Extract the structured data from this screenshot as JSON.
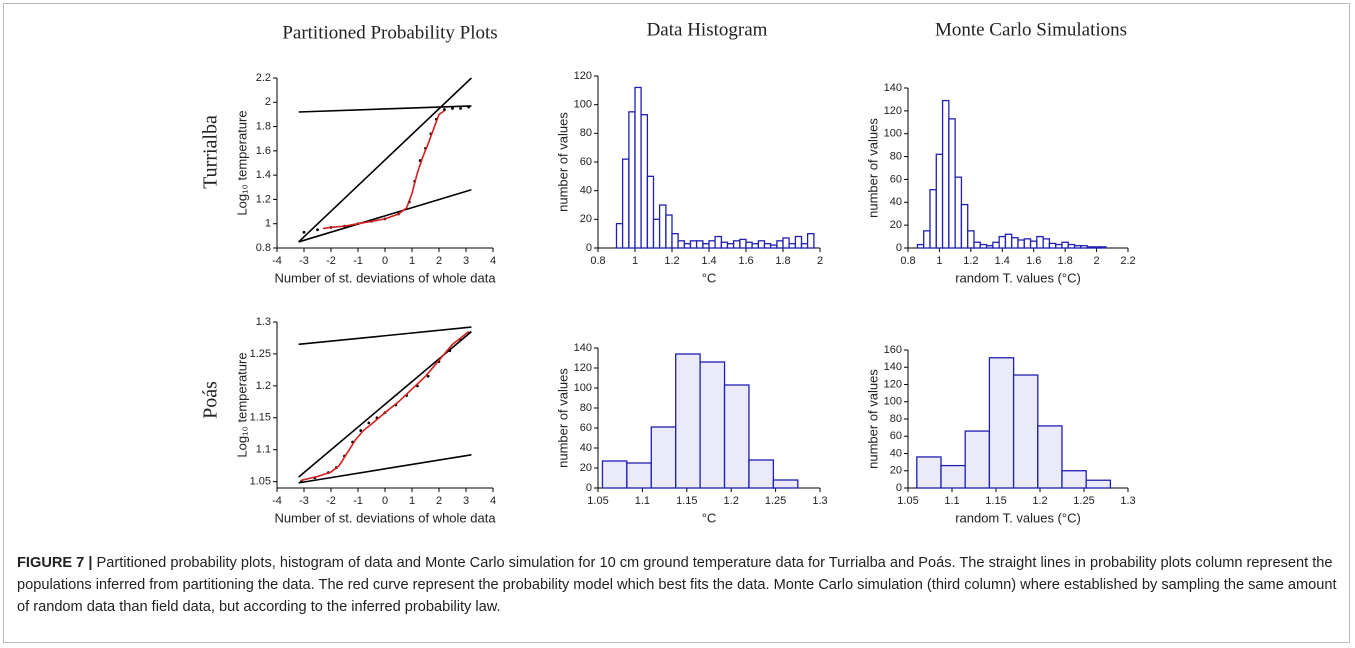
{
  "column_titles": [
    "Partitioned Probability Plots",
    "Data Histogram",
    "Monte Carlo Simulations"
  ],
  "row_labels": [
    "Turrialba",
    "Poás"
  ],
  "chart_data": [
    {
      "type": "line",
      "xlabel": "Number of st. deviations of whole data",
      "ylabel": "Log₁₀ temperature",
      "xlim": [
        -4,
        4
      ],
      "xticks": [
        -4,
        -3,
        -2,
        -1,
        0,
        1,
        2,
        3,
        4
      ],
      "ylim": [
        0.8,
        2.2
      ],
      "yticks": [
        0.8,
        1,
        1.2,
        1.4,
        1.6,
        1.8,
        2,
        2.2
      ],
      "series": [
        {
          "color": "#000000",
          "x": [
            -3.2,
            3.2
          ],
          "values": [
            1.92,
            1.97
          ]
        },
        {
          "color": "#000000",
          "x": [
            -3.2,
            3.2
          ],
          "values": [
            0.85,
            2.2
          ]
        },
        {
          "color": "#000000",
          "x": [
            -3.2,
            3.2
          ],
          "values": [
            0.85,
            1.28
          ]
        },
        {
          "color": "#000000",
          "mode": "markers",
          "x": [
            -3,
            -2.5,
            -2,
            -1.5,
            -1,
            -0.5,
            0,
            0.5,
            0.9,
            1.1,
            1.3,
            1.5,
            1.7,
            1.9,
            2.2,
            2.5,
            2.8,
            3.1
          ],
          "values": [
            0.93,
            0.95,
            0.97,
            0.98,
            1.0,
            1.02,
            1.04,
            1.08,
            1.18,
            1.35,
            1.52,
            1.62,
            1.74,
            1.86,
            1.94,
            1.95,
            1.95,
            1.96
          ]
        },
        {
          "color": "#d21f1f",
          "x": [
            -2.3,
            -2,
            -1.5,
            -1,
            -0.5,
            0,
            0.5,
            0.8,
            1,
            1.2,
            1.4,
            1.6,
            1.8,
            2,
            2.2
          ],
          "values": [
            0.96,
            0.97,
            0.98,
            1.0,
            1.02,
            1.04,
            1.08,
            1.13,
            1.25,
            1.42,
            1.55,
            1.66,
            1.78,
            1.9,
            1.93
          ]
        }
      ]
    },
    {
      "type": "histogram",
      "xlabel": "°C",
      "ylabel": "number of values",
      "color": "#1f1fb4",
      "fill": "#ffffff",
      "xlim": [
        0.8,
        2
      ],
      "xticks": [
        0.8,
        1,
        1.2,
        1.4,
        1.6,
        1.8,
        2
      ],
      "ylim": [
        0,
        120
      ],
      "yticks": [
        0,
        20,
        40,
        60,
        80,
        100,
        120
      ],
      "bins": [
        0.9,
        0.933,
        0.967,
        1.0,
        1.033,
        1.067,
        1.1,
        1.133,
        1.167,
        1.2,
        1.233,
        1.267,
        1.3,
        1.333,
        1.367,
        1.4,
        1.433,
        1.467,
        1.5,
        1.533,
        1.567,
        1.6,
        1.633,
        1.667,
        1.7,
        1.733,
        1.767,
        1.8,
        1.833,
        1.867,
        1.9,
        1.933,
        1.967
      ],
      "counts": [
        17,
        62,
        95,
        112,
        93,
        50,
        20,
        30,
        23,
        10,
        5,
        3,
        5,
        5,
        3,
        5,
        8,
        4,
        3,
        5,
        6,
        4,
        3,
        5,
        3,
        2,
        5,
        7,
        3,
        8,
        3,
        10
      ]
    },
    {
      "type": "histogram",
      "xlabel": "random T. values (°C)",
      "ylabel": "number of values",
      "color": "#1f1fb4",
      "fill": "#ffffff",
      "xlim": [
        0.8,
        2.2
      ],
      "xticks": [
        0.8,
        1,
        1.2,
        1.4,
        1.6,
        1.8,
        2,
        2.2
      ],
      "ylim": [
        0,
        140
      ],
      "yticks": [
        0,
        20,
        40,
        60,
        80,
        100,
        120,
        140
      ],
      "bins": [
        0.86,
        0.9,
        0.94,
        0.98,
        1.02,
        1.06,
        1.1,
        1.14,
        1.18,
        1.22,
        1.26,
        1.3,
        1.34,
        1.38,
        1.42,
        1.46,
        1.5,
        1.54,
        1.58,
        1.62,
        1.66,
        1.7,
        1.74,
        1.78,
        1.82,
        1.86,
        1.9,
        1.94,
        1.98,
        2.02,
        2.06
      ],
      "counts": [
        3,
        15,
        51,
        82,
        129,
        113,
        62,
        38,
        15,
        5,
        3,
        2,
        5,
        10,
        12,
        9,
        7,
        8,
        6,
        10,
        8,
        4,
        3,
        5,
        3,
        2,
        2,
        1,
        1,
        1
      ]
    },
    {
      "type": "line",
      "xlabel": "Number of st. deviations of whole data",
      "ylabel": "Log₁₀ temperature",
      "xlim": [
        -4,
        4
      ],
      "xticks": [
        -4,
        -3,
        -2,
        -1,
        0,
        1,
        2,
        3,
        4
      ],
      "ylim": [
        1.04,
        1.3
      ],
      "yticks": [
        1.05,
        1.1,
        1.15,
        1.2,
        1.25,
        1.3
      ],
      "series": [
        {
          "color": "#000000",
          "x": [
            -3.2,
            3.2
          ],
          "values": [
            1.265,
            1.292
          ]
        },
        {
          "color": "#000000",
          "x": [
            -3.2,
            3.2
          ],
          "values": [
            1.057,
            1.285
          ]
        },
        {
          "color": "#000000",
          "x": [
            -3.2,
            3.2
          ],
          "values": [
            1.048,
            1.092
          ]
        },
        {
          "color": "#000000",
          "mode": "markers",
          "x": [
            -3.1,
            -2.6,
            -2.1,
            -1.8,
            -1.5,
            -1.2,
            -0.9,
            -0.6,
            -0.3,
            0,
            0.4,
            0.8,
            1.2,
            1.6,
            2,
            2.4,
            2.8,
            3.1
          ],
          "values": [
            1.05,
            1.056,
            1.064,
            1.072,
            1.09,
            1.112,
            1.13,
            1.142,
            1.15,
            1.158,
            1.17,
            1.185,
            1.2,
            1.215,
            1.238,
            1.255,
            1.272,
            1.283
          ]
        },
        {
          "color": "#d21f1f",
          "x": [
            -3.1,
            -2.5,
            -2,
            -1.7,
            -1.4,
            -1.1,
            -0.8,
            -0.5,
            0,
            0.5,
            1,
            1.5,
            2,
            2.5,
            3.1
          ],
          "values": [
            1.052,
            1.058,
            1.065,
            1.075,
            1.095,
            1.115,
            1.13,
            1.14,
            1.158,
            1.175,
            1.195,
            1.215,
            1.24,
            1.265,
            1.285
          ]
        }
      ]
    },
    {
      "type": "histogram",
      "xlabel": "°C",
      "ylabel": "number of values",
      "color": "#1f1fb4",
      "fill": "#eaeaf8",
      "xlim": [
        1.05,
        1.3
      ],
      "xticks": [
        1.05,
        1.1,
        1.15,
        1.2,
        1.25,
        1.3
      ],
      "ylim": [
        0,
        140
      ],
      "yticks": [
        0,
        20,
        40,
        60,
        80,
        100,
        120,
        140
      ],
      "bins": [
        1.055,
        1.0825,
        1.11,
        1.1375,
        1.165,
        1.1925,
        1.22,
        1.2475,
        1.275
      ],
      "counts": [
        27,
        25,
        61,
        134,
        126,
        103,
        28,
        8
      ]
    },
    {
      "type": "histogram",
      "xlabel": "random T. values (°C)",
      "ylabel": "number of values",
      "color": "#1f1fb4",
      "fill": "#eaeaf8",
      "xlim": [
        1.05,
        1.3
      ],
      "xticks": [
        1.05,
        1.1,
        1.15,
        1.2,
        1.25,
        1.3
      ],
      "ylim": [
        0,
        160
      ],
      "yticks": [
        0,
        20,
        40,
        60,
        80,
        100,
        120,
        140,
        160
      ],
      "bins": [
        1.06,
        1.0875,
        1.115,
        1.1425,
        1.17,
        1.1975,
        1.225,
        1.2525,
        1.28
      ],
      "counts": [
        36,
        26,
        66,
        151,
        131,
        72,
        20,
        9
      ]
    }
  ],
  "caption": {
    "label": "FIGURE 7 |",
    "text": "Partitioned probability plots, histogram of data and Monte Carlo simulation for 10 cm ground temperature data for Turrialba and Poás. The straight lines in probability plots column represent the populations inferred from partitioning the data. The red curve represent the probability model which best fits the data. Monte Carlo simulation (third column) where established by sampling the same amount of random data than field data, but according to the inferred probability law."
  }
}
